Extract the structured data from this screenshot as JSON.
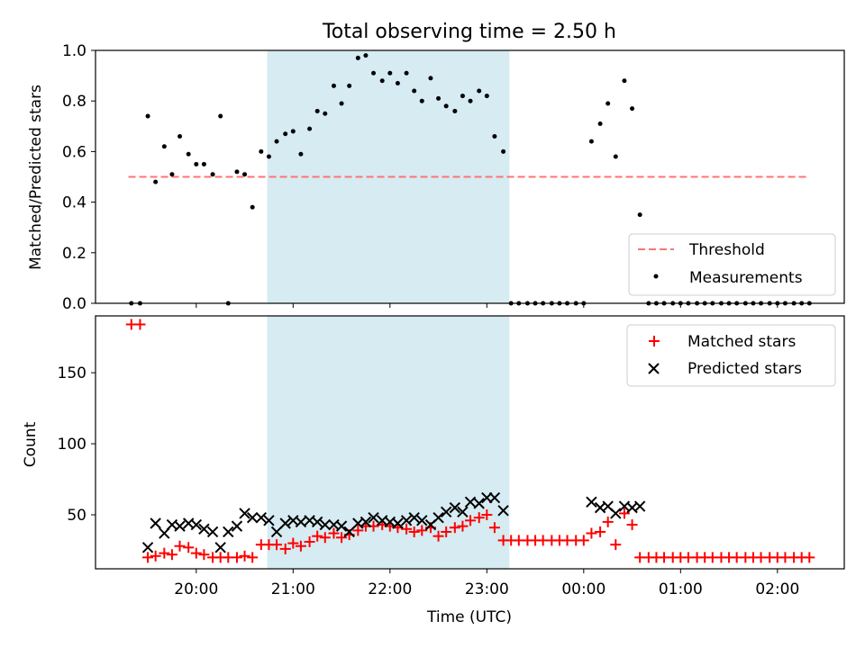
{
  "title": "Total observing time = 2.50 h",
  "colors": {
    "threshold": "#ff7373",
    "measurement": "#000000",
    "matched": "#ff0000",
    "predicted": "#000000",
    "span": "#add8e6"
  },
  "shaded_interval": {
    "start_hour": 20.733,
    "end_hour": 23.233
  },
  "chart_data": [
    {
      "type": "scatter",
      "ylabel": "Matched/Predicted stars",
      "xlabel": "",
      "ylim": [
        0,
        1.0
      ],
      "xlim_hours": [
        18.96,
        26.69
      ],
      "yticks": [
        0.0,
        0.2,
        0.4,
        0.6,
        0.8,
        1.0
      ],
      "ytick_labels": [
        "0.0",
        "0.2",
        "0.4",
        "0.6",
        "0.8",
        "1.0"
      ],
      "legend_position": "lower right",
      "series": [
        {
          "name": "Threshold",
          "kind": "dashed-line",
          "x": [
            19.3,
            26.3
          ],
          "y": [
            0.5,
            0.5
          ]
        },
        {
          "name": "Measurements",
          "kind": "points",
          "x": [
            19.33,
            19.42,
            19.5,
            19.58,
            19.67,
            19.75,
            19.83,
            19.92,
            20.0,
            20.08,
            20.17,
            20.25,
            20.33,
            20.42,
            20.5,
            20.58,
            20.67,
            20.75,
            20.83,
            20.92,
            21.0,
            21.08,
            21.17,
            21.25,
            21.33,
            21.42,
            21.5,
            21.58,
            21.67,
            21.75,
            21.83,
            21.92,
            22.0,
            22.08,
            22.17,
            22.25,
            22.33,
            22.42,
            22.5,
            22.58,
            22.67,
            22.75,
            22.83,
            22.92,
            23.0,
            23.08,
            23.17,
            23.25,
            23.33,
            23.42,
            23.5,
            23.58,
            23.67,
            23.75,
            23.83,
            23.92,
            24.0,
            24.08,
            24.17,
            24.25,
            24.33,
            24.42,
            24.5,
            24.58,
            24.67,
            24.75,
            24.83,
            24.92,
            25.0,
            25.08,
            25.17,
            25.25,
            25.33,
            25.42,
            25.5,
            25.58,
            25.67,
            25.75,
            25.83,
            25.92,
            26.0,
            26.08,
            26.17,
            26.25,
            26.33
          ],
          "y": [
            0.0,
            0.0,
            0.74,
            0.48,
            0.62,
            0.51,
            0.66,
            0.59,
            0.55,
            0.55,
            0.51,
            0.74,
            0.0,
            0.52,
            0.51,
            0.38,
            0.6,
            0.58,
            0.64,
            0.67,
            0.68,
            0.59,
            0.69,
            0.76,
            0.75,
            0.86,
            0.79,
            0.86,
            0.97,
            0.98,
            0.91,
            0.88,
            0.91,
            0.87,
            0.91,
            0.84,
            0.8,
            0.89,
            0.81,
            0.78,
            0.76,
            0.82,
            0.8,
            0.84,
            0.82,
            0.66,
            0.6,
            0.0,
            0.0,
            0.0,
            0.0,
            0.0,
            0.0,
            0.0,
            0.0,
            0.0,
            0.0,
            0.64,
            0.71,
            0.79,
            0.58,
            0.88,
            0.77,
            0.35,
            0.0,
            0.0,
            0.0,
            0.0,
            0.0,
            0.0,
            0.0,
            0.0,
            0.0,
            0.0,
            0.0,
            0.0,
            0.0,
            0.0,
            0.0,
            0.0,
            0.0,
            0.0,
            0.0,
            0.0,
            0.0
          ]
        }
      ]
    },
    {
      "type": "scatter",
      "ylabel": "Count",
      "xlabel": "Time (UTC)",
      "ylim": [
        12,
        190
      ],
      "xlim_hours": [
        18.96,
        26.69
      ],
      "yticks": [
        50,
        100,
        150
      ],
      "ytick_labels": [
        "50",
        "100",
        "150"
      ],
      "xticks_hours": [
        20,
        21,
        22,
        23,
        24,
        25,
        26
      ],
      "xtick_labels": [
        "20:00",
        "21:00",
        "22:00",
        "23:00",
        "00:00",
        "01:00",
        "02:00"
      ],
      "legend_position": "upper right",
      "series": [
        {
          "name": "Matched stars",
          "marker": "plus",
          "x": [
            19.33,
            19.42,
            19.5,
            19.58,
            19.67,
            19.75,
            19.83,
            19.92,
            20.0,
            20.08,
            20.17,
            20.25,
            20.33,
            20.42,
            20.5,
            20.58,
            20.67,
            20.75,
            20.83,
            20.92,
            21.0,
            21.08,
            21.17,
            21.25,
            21.33,
            21.42,
            21.5,
            21.58,
            21.67,
            21.75,
            21.83,
            21.92,
            22.0,
            22.08,
            22.17,
            22.25,
            22.33,
            22.42,
            22.5,
            22.58,
            22.67,
            22.75,
            22.83,
            22.92,
            23.0,
            23.08,
            23.17,
            23.25,
            23.33,
            23.42,
            23.5,
            23.58,
            23.67,
            23.75,
            23.83,
            23.92,
            24.0,
            24.08,
            24.17,
            24.25,
            24.33,
            24.42,
            24.5,
            24.58,
            24.67,
            24.75,
            24.83,
            24.92,
            25.0,
            25.08,
            25.17,
            25.25,
            25.33,
            25.42,
            25.5,
            25.58,
            25.67,
            25.75,
            25.83,
            25.92,
            26.0,
            26.08,
            26.17,
            26.25,
            26.33
          ],
          "y": [
            184,
            184,
            20,
            21,
            23,
            22,
            28,
            27,
            23,
            22,
            20,
            20,
            20,
            20,
            21,
            20,
            29,
            29,
            29,
            26,
            30,
            28,
            31,
            35,
            34,
            37,
            34,
            36,
            39,
            42,
            42,
            43,
            42,
            41,
            40,
            38,
            39,
            41,
            35,
            38,
            41,
            42,
            46,
            48,
            50,
            41,
            32,
            32,
            32,
            32,
            32,
            32,
            32,
            32,
            32,
            32,
            32,
            37,
            38,
            45,
            29,
            51,
            43,
            20,
            20,
            20,
            20,
            20,
            20,
            20,
            20,
            20,
            20,
            20,
            20,
            20,
            20,
            20,
            20,
            20,
            20,
            20,
            20,
            20,
            20
          ]
        },
        {
          "name": "Predicted stars",
          "marker": "x",
          "x": [
            19.5,
            19.58,
            19.67,
            19.75,
            19.83,
            19.92,
            20.0,
            20.08,
            20.17,
            20.25,
            20.33,
            20.42,
            20.5,
            20.58,
            20.67,
            20.75,
            20.83,
            20.92,
            21.0,
            21.08,
            21.17,
            21.25,
            21.33,
            21.42,
            21.5,
            21.58,
            21.67,
            21.75,
            21.83,
            21.92,
            22.0,
            22.08,
            22.17,
            22.25,
            22.33,
            22.42,
            22.5,
            22.58,
            22.67,
            22.75,
            22.83,
            22.92,
            23.0,
            23.08,
            23.17,
            24.08,
            24.17,
            24.25,
            24.33,
            24.42,
            24.5,
            24.58
          ],
          "y": [
            27,
            44,
            37,
            43,
            42,
            44,
            43,
            40,
            38,
            27,
            38,
            42,
            51,
            48,
            48,
            46,
            38,
            44,
            46,
            45,
            46,
            45,
            43,
            43,
            42,
            38,
            44,
            45,
            48,
            46,
            45,
            44,
            46,
            48,
            46,
            43,
            48,
            52,
            55,
            52,
            59,
            58,
            62,
            62,
            53,
            59,
            55,
            56,
            51,
            56,
            55,
            56
          ]
        }
      ]
    }
  ]
}
